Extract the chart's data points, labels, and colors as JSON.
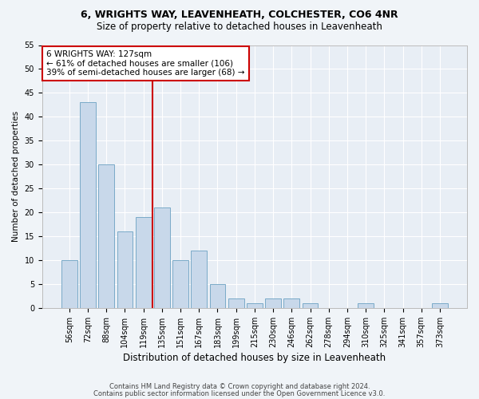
{
  "title1": "6, WRIGHTS WAY, LEAVENHEATH, COLCHESTER, CO6 4NR",
  "title2": "Size of property relative to detached houses in Leavenheath",
  "xlabel": "Distribution of detached houses by size in Leavenheath",
  "ylabel": "Number of detached properties",
  "categories": [
    "56sqm",
    "72sqm",
    "88sqm",
    "104sqm",
    "119sqm",
    "135sqm",
    "151sqm",
    "167sqm",
    "183sqm",
    "199sqm",
    "215sqm",
    "230sqm",
    "246sqm",
    "262sqm",
    "278sqm",
    "294sqm",
    "310sqm",
    "325sqm",
    "341sqm",
    "357sqm",
    "373sqm"
  ],
  "values": [
    10,
    43,
    30,
    16,
    19,
    21,
    10,
    12,
    5,
    2,
    1,
    2,
    2,
    1,
    0,
    0,
    1,
    0,
    0,
    0,
    1
  ],
  "bar_color": "#c8d8ea",
  "bar_edge_color": "#7aaac8",
  "bar_width": 0.85,
  "vline_x": 4.5,
  "vline_color": "#cc0000",
  "annotation_line1": "6 WRIGHTS WAY: 127sqm",
  "annotation_line2": "← 61% of detached houses are smaller (106)",
  "annotation_line3": "39% of semi-detached houses are larger (68) →",
  "annotation_box_color": "#ffffff",
  "annotation_box_edge": "#cc0000",
  "ylim": [
    0,
    55
  ],
  "yticks": [
    0,
    5,
    10,
    15,
    20,
    25,
    30,
    35,
    40,
    45,
    50,
    55
  ],
  "footer1": "Contains HM Land Registry data © Crown copyright and database right 2024.",
  "footer2": "Contains public sector information licensed under the Open Government Licence v3.0.",
  "bg_color": "#f0f4f8",
  "plot_bg_color": "#e8eef5",
  "grid_color": "#ffffff",
  "title1_fontsize": 9,
  "title2_fontsize": 8.5,
  "xlabel_fontsize": 8.5,
  "ylabel_fontsize": 7.5,
  "tick_fontsize": 7,
  "annotation_fontsize": 7.5,
  "footer_fontsize": 6
}
